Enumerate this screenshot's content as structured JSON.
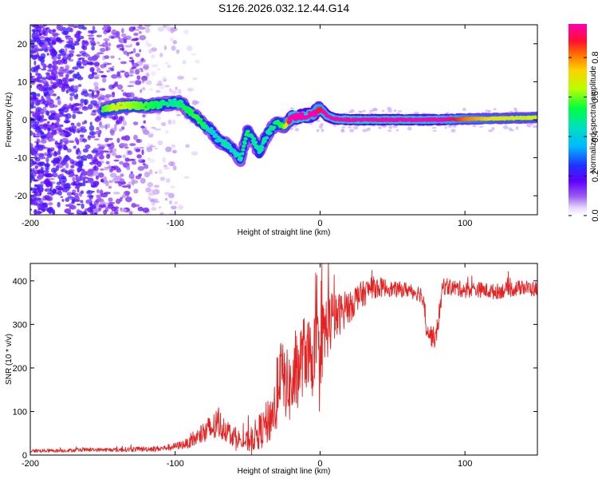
{
  "title": "S126.2026.032.12.44.G14",
  "chart_data": [
    {
      "type": "heatmap",
      "name": "spectrogram",
      "title": "S126.2026.032.12.44.G14",
      "xlabel": "Height of straight line (km)",
      "ylabel": "Frequency (Hz)",
      "xlim": [
        -200,
        150
      ],
      "ylim": [
        -25,
        25
      ],
      "xticks": [
        -200,
        -100,
        0,
        100
      ],
      "yticks": [
        -20,
        -10,
        0,
        10,
        20
      ],
      "xtick_labels": [
        "-200",
        "-100",
        "0",
        "100"
      ],
      "ytick_labels": [
        "-20",
        "-10",
        "0",
        "10",
        "20"
      ],
      "colorbar": {
        "label": "Normalized spectral amplitude",
        "range": [
          0,
          0.97
        ],
        "ticks": [
          0.0,
          0.2,
          0.4,
          0.6,
          0.8
        ],
        "tick_labels": [
          "0.0",
          "0.2",
          "0.4",
          "0.6",
          "0.8"
        ],
        "colors": [
          "#ffffff",
          "#b58cf0",
          "#7000ff",
          "#2020ff",
          "#00c8ff",
          "#00ff60",
          "#d8ff00",
          "#ffb000",
          "#ff2020",
          "#ff00c0"
        ]
      },
      "ridge": {
        "x": [
          -150,
          -140,
          -130,
          -120,
          -110,
          -100,
          -95,
          -90,
          -85,
          -80,
          -75,
          -70,
          -65,
          -60,
          -55,
          -50,
          -45,
          -42,
          -38,
          -35,
          -30,
          -25,
          -20,
          -15,
          -10,
          -5,
          0,
          5,
          10,
          20,
          40,
          60,
          80,
          100,
          120,
          150
        ],
        "freq": [
          2.5,
          3.5,
          3.8,
          3.6,
          4.0,
          4.5,
          4.2,
          2.0,
          0.5,
          -1.5,
          -3.0,
          -5.5,
          -6.5,
          -8.0,
          -10.5,
          -3.0,
          -6.0,
          -9.0,
          -5.0,
          -3.0,
          -1.0,
          -1.5,
          0.5,
          0.8,
          1.0,
          1.5,
          3.0,
          1.0,
          0.2,
          0.0,
          0.0,
          0.0,
          0.0,
          0.2,
          0.3,
          0.6
        ],
        "amp": [
          0.45,
          0.55,
          0.5,
          0.45,
          0.4,
          0.35,
          0.4,
          0.42,
          0.45,
          0.4,
          0.3,
          0.3,
          0.35,
          0.3,
          0.35,
          0.4,
          0.35,
          0.35,
          0.35,
          0.35,
          0.4,
          0.45,
          0.9,
          0.95,
          0.95,
          0.92,
          0.75,
          0.95,
          0.95,
          0.97,
          0.97,
          0.95,
          0.92,
          0.7,
          0.6,
          0.55
        ]
      }
    },
    {
      "type": "line",
      "name": "snr",
      "xlabel": "Height of straight line (km)",
      "ylabel": "SNR (10 * v/v)",
      "xlim": [
        -200,
        150
      ],
      "ylim": [
        0,
        440
      ],
      "xticks": [
        -200,
        -100,
        0,
        100
      ],
      "yticks": [
        0,
        100,
        200,
        300,
        400
      ],
      "xtick_labels": [
        "-200",
        "-100",
        "0",
        "100"
      ],
      "ytick_labels": [
        "0",
        "100",
        "200",
        "300",
        "400"
      ],
      "color": "#e52222",
      "series": [
        {
          "name": "SNR",
          "x": [
            -200,
            -180,
            -160,
            -140,
            -120,
            -110,
            -100,
            -90,
            -85,
            -80,
            -75,
            -70,
            -65,
            -60,
            -55,
            -50,
            -45,
            -40,
            -35,
            -30,
            -28,
            -25,
            -20,
            -15,
            -10,
            -5,
            0,
            5,
            10,
            15,
            20,
            25,
            30,
            35,
            40,
            45,
            50,
            55,
            60,
            65,
            70,
            72,
            75,
            78,
            80,
            85,
            90,
            100,
            110,
            120,
            130,
            140,
            150
          ],
          "y": [
            10,
            10,
            12,
            12,
            14,
            15,
            20,
            28,
            40,
            50,
            60,
            70,
            60,
            45,
            35,
            30,
            45,
            60,
            80,
            120,
            200,
            170,
            150,
            200,
            240,
            220,
            250,
            300,
            310,
            330,
            340,
            360,
            370,
            385,
            385,
            385,
            380,
            380,
            380,
            375,
            370,
            330,
            280,
            270,
            270,
            390,
            385,
            380,
            380,
            375,
            380,
            385,
            380
          ],
          "noise": [
            4,
            4,
            4,
            5,
            6,
            6,
            8,
            12,
            20,
            30,
            35,
            35,
            30,
            25,
            20,
            25,
            35,
            45,
            55,
            70,
            80,
            80,
            85,
            90,
            90,
            95,
            95,
            80,
            60,
            45,
            40,
            35,
            30,
            25,
            25,
            20,
            18,
            18,
            18,
            18,
            20,
            30,
            25,
            25,
            25,
            22,
            20,
            18,
            18,
            18,
            18,
            18,
            18
          ]
        }
      ]
    }
  ]
}
